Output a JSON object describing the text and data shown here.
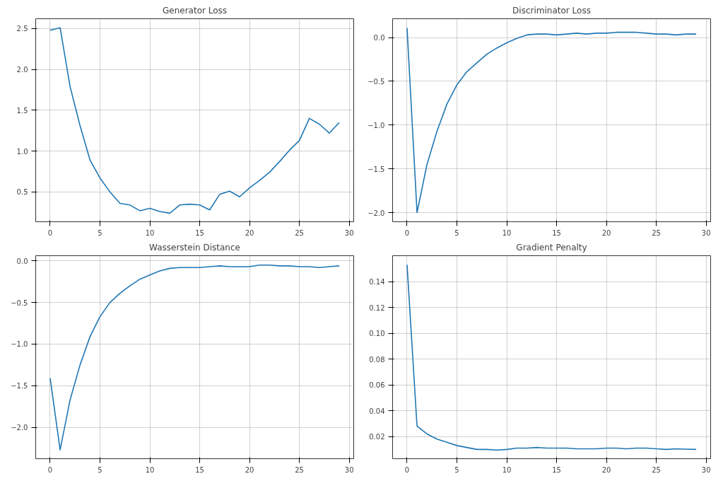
{
  "chart_data": [
    {
      "type": "line",
      "title": "Generator Loss",
      "x": [
        0,
        1,
        2,
        3,
        4,
        5,
        6,
        7,
        8,
        9,
        10,
        11,
        12,
        13,
        14,
        15,
        16,
        17,
        18,
        19,
        20,
        21,
        22,
        23,
        24,
        25,
        26,
        27,
        28,
        29
      ],
      "series": [
        {
          "color": "#1f77b4",
          "values": [
            2.48,
            2.51,
            1.79,
            1.31,
            0.89,
            0.67,
            0.5,
            0.36,
            0.34,
            0.27,
            0.3,
            0.26,
            0.24,
            0.34,
            0.35,
            0.34,
            0.28,
            0.47,
            0.51,
            0.44,
            0.55,
            0.64,
            0.74,
            0.87,
            1.01,
            1.13,
            1.4,
            1.33,
            1.22,
            1.35
          ]
        }
      ],
      "xlim": [
        -1.45,
        30.45
      ],
      "xticks": [
        0,
        5,
        10,
        15,
        20,
        25,
        30
      ],
      "ylim": [
        0.135,
        2.62
      ],
      "yticks": [
        {
          "value": 0.5,
          "label": "0.5"
        },
        {
          "value": 1,
          "label": "1.0"
        },
        {
          "value": 1.5,
          "label": "1.5"
        },
        {
          "value": 2,
          "label": "2.0"
        },
        {
          "value": 2.5,
          "label": "2.5"
        }
      ],
      "grid": true
    },
    {
      "type": "line",
      "title": "Discriminator Loss",
      "x": [
        0,
        1,
        2,
        3,
        4,
        5,
        6,
        7,
        8,
        9,
        10,
        11,
        12,
        13,
        14,
        15,
        16,
        17,
        18,
        19,
        20,
        21,
        22,
        23,
        24,
        25,
        26,
        27,
        28,
        29
      ],
      "series": [
        {
          "color": "#1f77b4",
          "values": [
            0.11,
            -2.0,
            -1.45,
            -1.07,
            -0.76,
            -0.54,
            -0.39,
            -0.29,
            -0.19,
            -0.12,
            -0.06,
            -0.01,
            0.03,
            0.04,
            0.04,
            0.03,
            0.04,
            0.05,
            0.04,
            0.05,
            0.05,
            0.06,
            0.06,
            0.06,
            0.05,
            0.04,
            0.04,
            0.03,
            0.04,
            0.04
          ]
        }
      ],
      "xlim": [
        -1.45,
        30.45
      ],
      "xticks": [
        0,
        5,
        10,
        15,
        20,
        25,
        30
      ],
      "ylim": [
        -2.105,
        0.215
      ],
      "yticks": [
        {
          "value": -2,
          "label": "−2.0"
        },
        {
          "value": -1.5,
          "label": "−1.5"
        },
        {
          "value": -1,
          "label": "−1.0"
        },
        {
          "value": -0.5,
          "label": "−0.5"
        },
        {
          "value": 0,
          "label": "0.0"
        }
      ],
      "grid": true
    },
    {
      "type": "line",
      "title": "Wasserstein Distance",
      "x": [
        0,
        1,
        2,
        3,
        4,
        5,
        6,
        7,
        8,
        9,
        10,
        11,
        12,
        13,
        14,
        15,
        16,
        17,
        18,
        19,
        20,
        21,
        22,
        23,
        24,
        25,
        26,
        27,
        28,
        29
      ],
      "series": [
        {
          "color": "#1f77b4",
          "values": [
            -1.41,
            -2.27,
            -1.67,
            -1.25,
            -0.91,
            -0.67,
            -0.5,
            -0.39,
            -0.3,
            -0.22,
            -0.17,
            -0.12,
            -0.09,
            -0.08,
            -0.08,
            -0.08,
            -0.07,
            -0.06,
            -0.07,
            -0.07,
            -0.07,
            -0.05,
            -0.05,
            -0.06,
            -0.06,
            -0.07,
            -0.07,
            -0.08,
            -0.07,
            -0.06
          ]
        }
      ],
      "xlim": [
        -1.45,
        30.45
      ],
      "xticks": [
        0,
        5,
        10,
        15,
        20,
        25,
        30
      ],
      "ylim": [
        -2.377,
        0.062
      ],
      "yticks": [
        {
          "value": -2,
          "label": "−2.0"
        },
        {
          "value": -1.5,
          "label": "−1.5"
        },
        {
          "value": -1,
          "label": "−1.0"
        },
        {
          "value": -0.5,
          "label": "−0.5"
        },
        {
          "value": 0,
          "label": "0.0"
        }
      ],
      "grid": true
    },
    {
      "type": "line",
      "title": "Gradient Penalty",
      "x": [
        0,
        1,
        2,
        3,
        4,
        5,
        6,
        7,
        8,
        9,
        10,
        11,
        12,
        13,
        14,
        15,
        16,
        17,
        18,
        19,
        20,
        21,
        22,
        23,
        24,
        25,
        26,
        27,
        28,
        29
      ],
      "series": [
        {
          "color": "#1f77b4",
          "values": [
            0.153,
            0.028,
            0.022,
            0.018,
            0.0155,
            0.013,
            0.0115,
            0.01,
            0.01,
            0.0095,
            0.01,
            0.011,
            0.011,
            0.0115,
            0.011,
            0.011,
            0.011,
            0.0105,
            0.0105,
            0.0105,
            0.011,
            0.011,
            0.0105,
            0.011,
            0.011,
            0.0105,
            0.01,
            0.0105,
            0.0102,
            0.01
          ]
        }
      ],
      "xlim": [
        -1.45,
        30.45
      ],
      "xticks": [
        0,
        5,
        10,
        15,
        20,
        25,
        30
      ],
      "ylim": [
        0.0028,
        0.16
      ],
      "yticks": [
        {
          "value": 0.02,
          "label": "0.02"
        },
        {
          "value": 0.04,
          "label": "0.04"
        },
        {
          "value": 0.06,
          "label": "0.06"
        },
        {
          "value": 0.08,
          "label": "0.08"
        },
        {
          "value": 0.1,
          "label": "0.10"
        },
        {
          "value": 0.12,
          "label": "0.12"
        },
        {
          "value": 0.14,
          "label": "0.14"
        }
      ],
      "grid": true
    }
  ]
}
